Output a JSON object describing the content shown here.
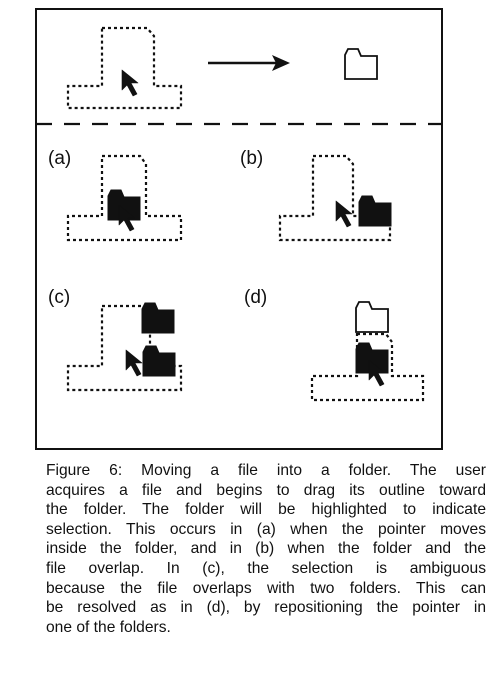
{
  "panels": {
    "a": "(a)",
    "b": "(b)",
    "c": "(c)",
    "d": "(d)"
  },
  "caption_lines": [
    "Figure 6:  Moving a file into a folder.  The user",
    "acquires a file and begins to drag its outline toward",
    "the folder.  The folder will be highlighted to indicate",
    "selection.  This occurs in (a) when the pointer moves",
    "inside the folder, and in (b) when the folder and the",
    "file overlap.   In (c), the selection is ambiguous",
    "because the file overlaps with two folders.  This can",
    "be resolved as in (d), by repositioning the pointer in",
    "one of the folders."
  ],
  "icons": [
    "file-outline-icon",
    "pointer-arrow-icon",
    "right-arrow-icon",
    "folder-outline-icon",
    "folder-filled-icon"
  ]
}
